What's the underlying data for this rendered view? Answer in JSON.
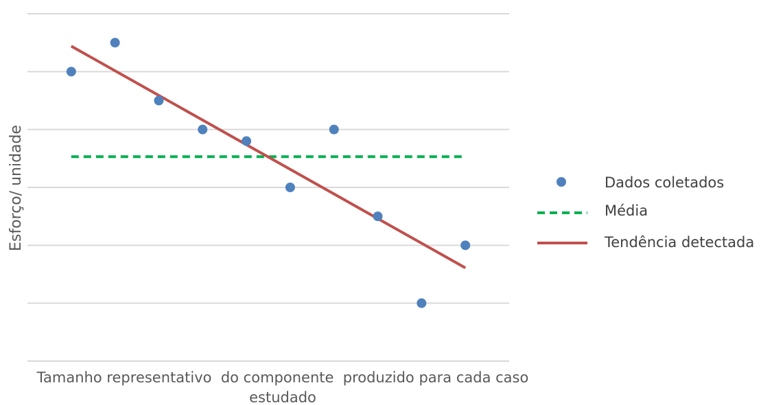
{
  "chart_data": {
    "type": "scatter",
    "title": "",
    "xlabel_lines": [
      "Tamanho representativo  do componente  produzido para cada caso",
      "estudado"
    ],
    "ylabel": "Esforço/ unidade",
    "x_range": [
      0,
      11
    ],
    "y_range": [
      0,
      12
    ],
    "y_ticks": [
      0,
      2,
      4,
      6,
      8,
      10,
      12
    ],
    "grid": true,
    "tick_labels_shown": false,
    "legend_position": "right",
    "series": [
      {
        "name": "Dados coletados",
        "kind": "points",
        "color": "#4F81BD",
        "x": [
          1,
          2,
          3,
          4,
          5,
          6,
          7,
          8,
          9,
          10
        ],
        "y": [
          10,
          11,
          9,
          8,
          7.6,
          6,
          8,
          5,
          2,
          4
        ]
      },
      {
        "name": "Média",
        "kind": "dashed-line",
        "color": "#00B050",
        "x": [
          1,
          10
        ],
        "y": [
          7.06,
          7.06
        ]
      },
      {
        "name": "Tendência detectada",
        "kind": "line",
        "color": "#C0504D",
        "x": [
          1,
          10
        ],
        "y": [
          10.88,
          3.22
        ]
      }
    ]
  }
}
